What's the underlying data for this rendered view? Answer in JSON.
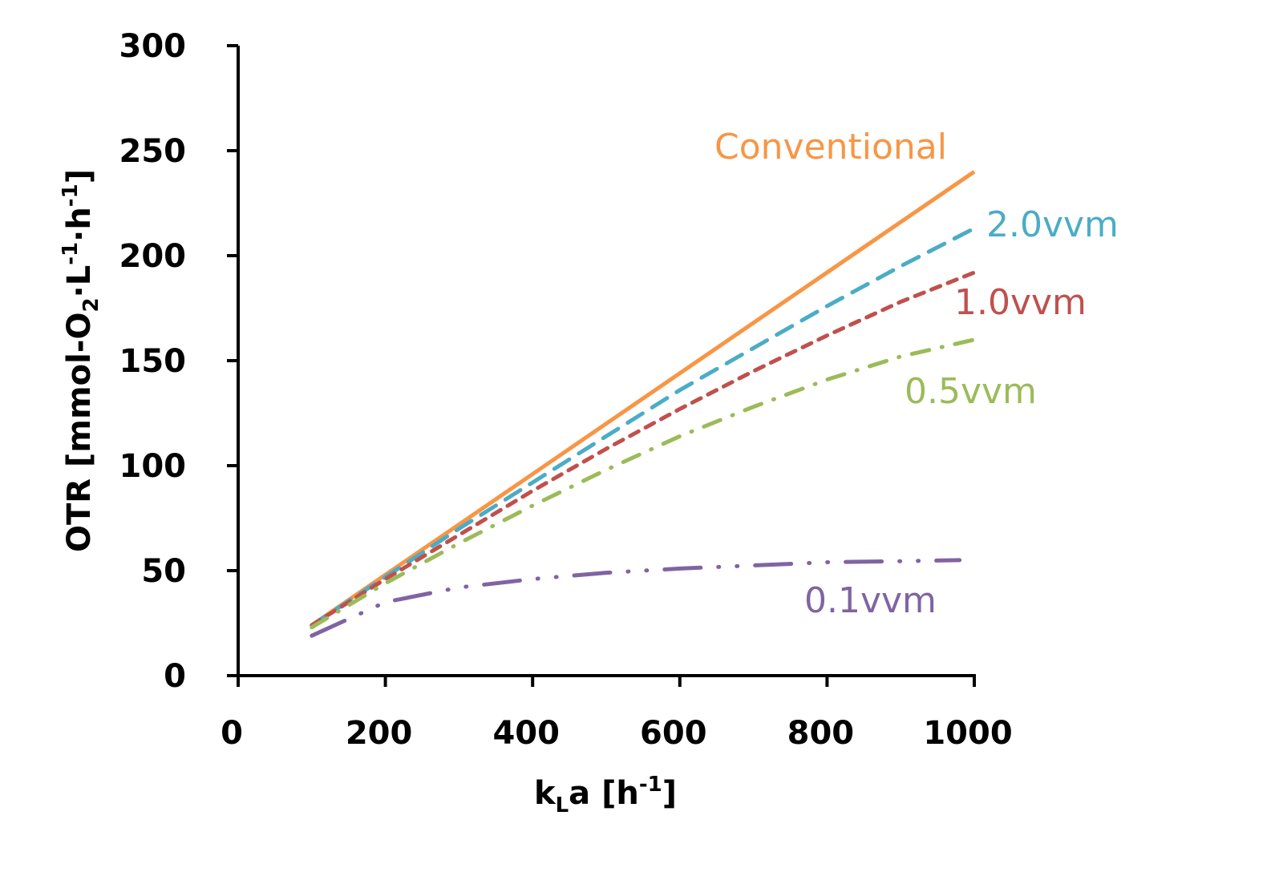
{
  "chart_data": {
    "type": "line",
    "title": "",
    "xlabel_parts": {
      "main": "k",
      "sub": "L",
      "rest": "a [h",
      "sup": "-1",
      "end": "]"
    },
    "ylabel_parts": {
      "a": "OTR [mmol-O",
      "sub": "2",
      "b": "·L",
      "sup1": "-1",
      "c": "·h",
      "sup2": "-1",
      "d": "]"
    },
    "xlim": [
      0,
      1000
    ],
    "ylim": [
      0,
      300
    ],
    "xticks": [
      "0",
      "200",
      "400",
      "600",
      "800",
      "1000"
    ],
    "yticks": [
      "0",
      "50",
      "100",
      "150",
      "200",
      "250",
      "300"
    ],
    "grid": false,
    "x": [
      100,
      200,
      300,
      400,
      500,
      600,
      700,
      800,
      900,
      1000
    ],
    "series": [
      {
        "name": "Conventional",
        "color": "#F79646",
        "dash": "solid",
        "values": [
          24,
          48,
          72,
          96,
          120,
          144,
          168,
          192,
          216,
          240
        ]
      },
      {
        "name": "2.0vvm",
        "color": "#4BACC6",
        "dash": "long-dash",
        "values": [
          24,
          47,
          70,
          92,
          114,
          136,
          156,
          176,
          195,
          213
        ]
      },
      {
        "name": "1.0vvm",
        "color": "#C0504D",
        "dash": "short-dash",
        "values": [
          24,
          46,
          67,
          88,
          108,
          127,
          145,
          162,
          178,
          192
        ]
      },
      {
        "name": "0.5vvm",
        "color": "#9BBB59",
        "dash": "dash-dot",
        "values": [
          23,
          44,
          63,
          81,
          98,
          114,
          128,
          141,
          152,
          160
        ]
      },
      {
        "name": "0.1vvm",
        "color": "#8064A2",
        "dash": "long-dash-dot-dot",
        "values": [
          19,
          35,
          42,
          46,
          49,
          51,
          52.5,
          54,
          54.5,
          55
        ]
      }
    ]
  }
}
